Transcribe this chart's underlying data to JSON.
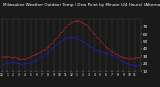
{
  "title": "Milwaukee Weather Outdoor Temp / Dew Point by Minute (24 Hours) (Alternate)",
  "title_fontsize": 3.0,
  "bg_color": "#1a1a1a",
  "plot_bg": "#1a1a1a",
  "grid_color": "#444444",
  "temp_color": "#ff2222",
  "dew_color": "#2222ff",
  "ylim": [
    10,
    80
  ],
  "xlim": [
    0,
    1440
  ],
  "ytick_vals": [
    70,
    60,
    50,
    40,
    30,
    20,
    10
  ],
  "xtick_step": 60,
  "text_color": "#ffffff"
}
